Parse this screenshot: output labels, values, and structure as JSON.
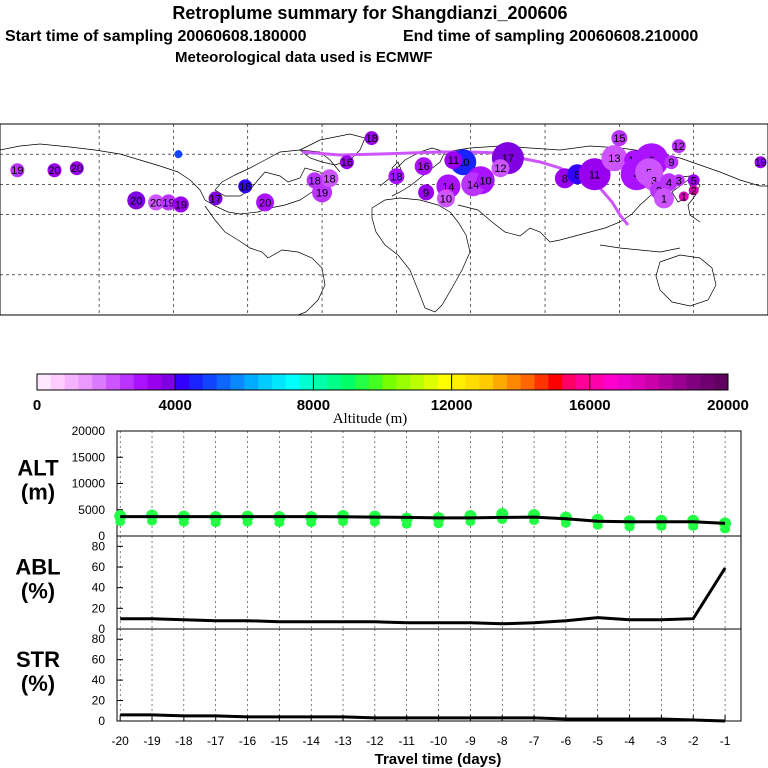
{
  "title": "Retroplume summary for Shangdianzi_200606",
  "subtitle_start": "Start time of sampling 20060608.180000",
  "subtitle_end": "End time of sampling 20060608.210000",
  "subtitle_met": "Meteorological data used is ECMWF",
  "colorbar": {
    "label": "Altitude (m)",
    "ticks": [
      "0",
      "4000",
      "8000",
      "12000",
      "16000",
      "20000"
    ],
    "colors": [
      "#ffe6ff",
      "#ffccff",
      "#f5b3ff",
      "#eb99ff",
      "#dc7aff",
      "#cc55ff",
      "#bb33ff",
      "#aa11ff",
      "#9900ee",
      "#7f00e0",
      "#3300ff",
      "#1a22ff",
      "#1144ff",
      "#0f66ff",
      "#0a88ff",
      "#00aaff",
      "#00ccff",
      "#00e6ff",
      "#00ffff",
      "#00ffd0",
      "#00ffaa",
      "#00ff88",
      "#00ff66",
      "#22ff44",
      "#44ff22",
      "#77ff00",
      "#99ff00",
      "#bbff00",
      "#ddff00",
      "#ffff00",
      "#ffee00",
      "#ffdd00",
      "#ffcc00",
      "#ffaa00",
      "#ff8800",
      "#ff6600",
      "#ff3300",
      "#ff0000",
      "#ff0066",
      "#ff0099",
      "#ff00aa",
      "#ff00cc",
      "#ee00cc",
      "#dd00bb",
      "#cc00aa",
      "#b0009f",
      "#990090",
      "#800080",
      "#700070",
      "#600060"
    ]
  },
  "map_plumes": [
    {
      "label": "19",
      "lon": -123,
      "lat": 52,
      "r": 7,
      "color": "#bb33ff"
    },
    {
      "label": "20",
      "lon": -108,
      "lat": 52,
      "r": 7,
      "color": "#9900ee"
    },
    {
      "label": "20",
      "lon": -99,
      "lat": 53,
      "r": 7,
      "color": "#9900ee"
    },
    {
      "label": "",
      "lon": -58,
      "lat": 60,
      "r": 4,
      "color": "#1144ff"
    },
    {
      "label": "20",
      "lon": -75,
      "lat": 37,
      "r": 9,
      "color": "#7f00e0"
    },
    {
      "label": "20",
      "lon": -67,
      "lat": 36,
      "r": 8,
      "color": "#cc55ff"
    },
    {
      "label": "19",
      "lon": -62,
      "lat": 36,
      "r": 8,
      "color": "#bb33ff"
    },
    {
      "label": "19",
      "lon": -57,
      "lat": 35,
      "r": 8,
      "color": "#9900ee"
    },
    {
      "label": "17",
      "lon": -43,
      "lat": 38,
      "r": 7,
      "color": "#7f00e0"
    },
    {
      "label": "18",
      "lon": -31,
      "lat": 44,
      "r": 7,
      "color": "#3300ff"
    },
    {
      "label": "20",
      "lon": -23,
      "lat": 36,
      "r": 9,
      "color": "#aa11ff"
    },
    {
      "label": "19",
      "lon": 0,
      "lat": 41,
      "r": 10,
      "color": "#bb33ff"
    },
    {
      "label": "18",
      "lon": 3,
      "lat": 48,
      "r": 9,
      "color": "#cc55ff"
    },
    {
      "label": "18",
      "lon": -3,
      "lat": 47,
      "r": 8,
      "color": "#bb33ff"
    },
    {
      "label": "16",
      "lon": 10,
      "lat": 56,
      "r": 7,
      "color": "#9900ee"
    },
    {
      "label": "18",
      "lon": 30,
      "lat": 49,
      "r": 8,
      "color": "#aa11ff"
    },
    {
      "label": "18",
      "lon": 20,
      "lat": 68,
      "r": 7,
      "color": "#9900ee"
    },
    {
      "label": "16",
      "lon": 41,
      "lat": 54,
      "r": 9,
      "color": "#aa11ff"
    },
    {
      "label": "10",
      "lon": 57,
      "lat": 56,
      "r": 13,
      "color": "#1a22ff"
    },
    {
      "label": "11",
      "lon": 53,
      "lat": 57,
      "r": 9,
      "color": "#9900ee"
    },
    {
      "label": "17",
      "lon": 75,
      "lat": 58,
      "r": 16,
      "color": "#7f00e0"
    },
    {
      "label": "12",
      "lon": 72,
      "lat": 53,
      "r": 9,
      "color": "#cc55ff"
    },
    {
      "label": "13",
      "lon": 64,
      "lat": 47,
      "r": 14,
      "color": "#aa11ff"
    },
    {
      "label": "14",
      "lon": 61,
      "lat": 45,
      "r": 12,
      "color": "#bb33ff"
    },
    {
      "label": "14",
      "lon": 51,
      "lat": 44,
      "r": 12,
      "color": "#aa11ff"
    },
    {
      "label": "9",
      "lon": 42,
      "lat": 41,
      "r": 8,
      "color": "#9900ee"
    },
    {
      "label": "10",
      "lon": 50,
      "lat": 38,
      "r": 9,
      "color": "#cc55ff"
    },
    {
      "label": "10",
      "lon": 66,
      "lat": 47,
      "r": 9,
      "color": "#aa11ff"
    },
    {
      "label": "8",
      "lon": 98,
      "lat": 48,
      "r": 10,
      "color": "#9900ee"
    },
    {
      "label": "8",
      "lon": 103,
      "lat": 50,
      "r": 10,
      "color": "#3300ff"
    },
    {
      "label": "11",
      "lon": 110,
      "lat": 50,
      "r": 16,
      "color": "#9900ee"
    },
    {
      "label": "13",
      "lon": 118,
      "lat": 58,
      "r": 13,
      "color": "#cc55ff"
    },
    {
      "label": "15",
      "lon": 120,
      "lat": 68,
      "r": 8,
      "color": "#bb33ff"
    },
    {
      "label": "12",
      "lon": 126,
      "lat": 57,
      "r": 10,
      "color": "#aa11ff"
    },
    {
      "label": "6",
      "lon": 133,
      "lat": 57,
      "r": 17,
      "color": "#aa11ff"
    },
    {
      "label": "4",
      "lon": 127,
      "lat": 50,
      "r": 16,
      "color": "#aa11ff"
    },
    {
      "label": "5",
      "lon": 132,
      "lat": 51,
      "r": 14,
      "color": "#cc55ff"
    },
    {
      "label": "3",
      "lon": 134,
      "lat": 47,
      "r": 11,
      "color": "#cc55ff"
    },
    {
      "label": "4",
      "lon": 140,
      "lat": 46,
      "r": 9,
      "color": "#bb33ff"
    },
    {
      "label": "2",
      "lon": 136,
      "lat": 42,
      "r": 9,
      "color": "#bb33ff"
    },
    {
      "label": "1",
      "lon": 138,
      "lat": 38,
      "r": 10,
      "color": "#cc55ff"
    },
    {
      "label": "12",
      "lon": 144,
      "lat": 64,
      "r": 7,
      "color": "#bb33ff"
    },
    {
      "label": "9",
      "lon": 141,
      "lat": 56,
      "r": 7,
      "color": "#bb33ff"
    },
    {
      "label": "3",
      "lon": 144,
      "lat": 47,
      "r": 6,
      "color": "#bb33ff"
    },
    {
      "label": "5",
      "lon": 150,
      "lat": 47,
      "r": 6,
      "color": "#9900ee"
    },
    {
      "label": "1",
      "lon": 146,
      "lat": 39,
      "r": 5,
      "color": "#dd00bb"
    },
    {
      "label": "2",
      "lon": 150,
      "lat": 42,
      "r": 5,
      "color": "#cc00aa"
    },
    {
      "label": "19",
      "lon": 177,
      "lat": 56,
      "r": 6,
      "color": "#9900ee"
    }
  ],
  "chart_data": [
    {
      "type": "line",
      "name": "ALT",
      "ylabel_line1": "ALT",
      "ylabel_line2": "(m)",
      "ylim": [
        0,
        20000
      ],
      "yticks": [
        0,
        5000,
        10000,
        15000,
        20000
      ],
      "x": [
        -20,
        -19,
        -18,
        -17,
        -16,
        -15,
        -14,
        -13,
        -12,
        -11,
        -10,
        -9,
        -8,
        -7,
        -6,
        -5,
        -4,
        -3,
        -2,
        -1
      ],
      "series": [
        {
          "name": "median altitude",
          "values": [
            3700,
            3700,
            3700,
            3700,
            3700,
            3700,
            3700,
            3650,
            3600,
            3550,
            3450,
            3450,
            3550,
            3600,
            3300,
            2800,
            2700,
            2700,
            2700,
            2400
          ]
        },
        {
          "name": "scatter",
          "values": [
            3800,
            3900,
            3700,
            3600,
            3700,
            3600,
            3600,
            3800,
            3700,
            3300,
            3400,
            3800,
            4200,
            4000,
            3500,
            3100,
            2800,
            2900,
            2900,
            2400
          ]
        }
      ]
    },
    {
      "type": "line",
      "name": "ABL",
      "ylabel_line1": "ABL",
      "ylabel_line2": "(%)",
      "ylim": [
        0,
        90
      ],
      "yticks": [
        0,
        20,
        40,
        60,
        80
      ],
      "x": [
        -20,
        -19,
        -18,
        -17,
        -16,
        -15,
        -14,
        -13,
        -12,
        -11,
        -10,
        -9,
        -8,
        -7,
        -6,
        -5,
        -4,
        -3,
        -2,
        -1
      ],
      "series": [
        {
          "name": "ABL fraction",
          "values": [
            10,
            10,
            9,
            8,
            8,
            7,
            7,
            7,
            7,
            6,
            6,
            6,
            5,
            6,
            8,
            11,
            9,
            9,
            10,
            59
          ]
        }
      ]
    },
    {
      "type": "line",
      "name": "STR",
      "ylabel_line1": "STR",
      "ylabel_line2": "(%)",
      "ylim": [
        0,
        90
      ],
      "yticks": [
        0,
        20,
        40,
        60,
        80
      ],
      "x": [
        -20,
        -19,
        -18,
        -17,
        -16,
        -15,
        -14,
        -13,
        -12,
        -11,
        -10,
        -9,
        -8,
        -7,
        -6,
        -5,
        -4,
        -3,
        -2,
        -1
      ],
      "series": [
        {
          "name": "stratospheric fraction",
          "values": [
            6,
            6,
            5,
            5,
            4,
            4,
            4,
            4,
            3,
            3,
            3,
            3,
            3,
            3,
            2,
            2,
            2,
            2,
            1,
            0
          ]
        }
      ]
    }
  ],
  "xaxis": {
    "label": "Travel time (days)",
    "ticks": [
      "-20",
      "-19",
      "-18",
      "-17",
      "-16",
      "-15",
      "-14",
      "-13",
      "-12",
      "-11",
      "-10",
      "-9",
      "-8",
      "-7",
      "-6",
      "-5",
      "-4",
      "-3",
      "-2",
      "-1"
    ],
    "values": [
      -20,
      -19,
      -18,
      -17,
      -16,
      -15,
      -14,
      -13,
      -12,
      -11,
      -10,
      -9,
      -8,
      -7,
      -6,
      -5,
      -4,
      -3,
      -2,
      -1
    ]
  },
  "ytick_labels": {
    "alt": [
      "0",
      "5000",
      "10000",
      "15000",
      "20000"
    ],
    "pct": [
      "0",
      "20",
      "40",
      "60",
      "80"
    ]
  },
  "colors": {
    "scatter": "#22ff44",
    "line": "#000000",
    "map_line": "#000000"
  }
}
